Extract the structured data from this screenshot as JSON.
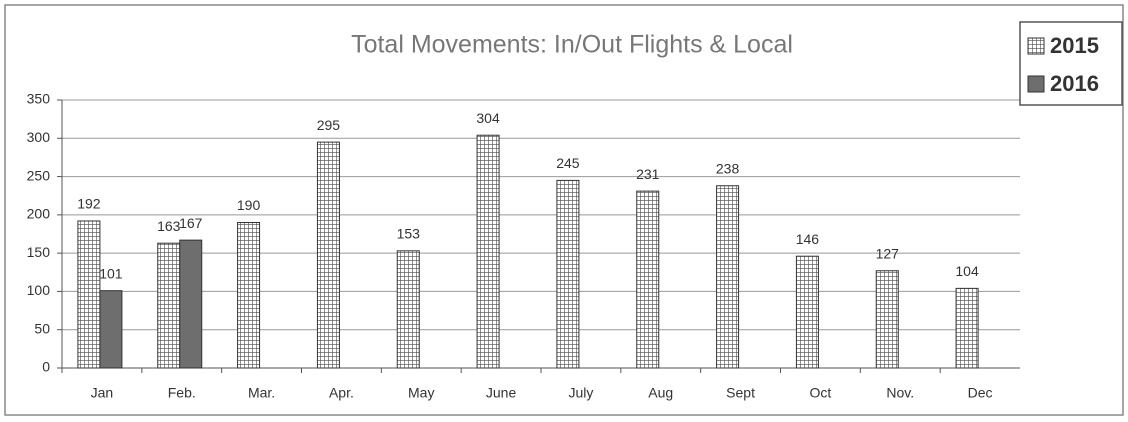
{
  "chart_data": {
    "type": "bar",
    "title": "Total Movements:  In/Out Flights & Local",
    "categories": [
      "Jan",
      "Feb.",
      "Mar.",
      "Apr.",
      "May",
      "June",
      "July",
      "Aug",
      "Sept",
      "Oct",
      "Nov.",
      "Dec"
    ],
    "series": [
      {
        "name": "2015",
        "color": "#4a4a4a",
        "pattern": "grid",
        "values": [
          192,
          163,
          190,
          295,
          153,
          304,
          245,
          231,
          238,
          146,
          127,
          104
        ]
      },
      {
        "name": "2016",
        "color": "#6e6e6e",
        "values": [
          101,
          167,
          null,
          null,
          null,
          null,
          null,
          null,
          null,
          null,
          null,
          null
        ]
      }
    ],
    "ylim": [
      0,
      350
    ],
    "yticks": [
      0,
      50,
      100,
      150,
      200,
      250,
      300,
      350
    ],
    "grid": true,
    "legend": "top-right"
  }
}
